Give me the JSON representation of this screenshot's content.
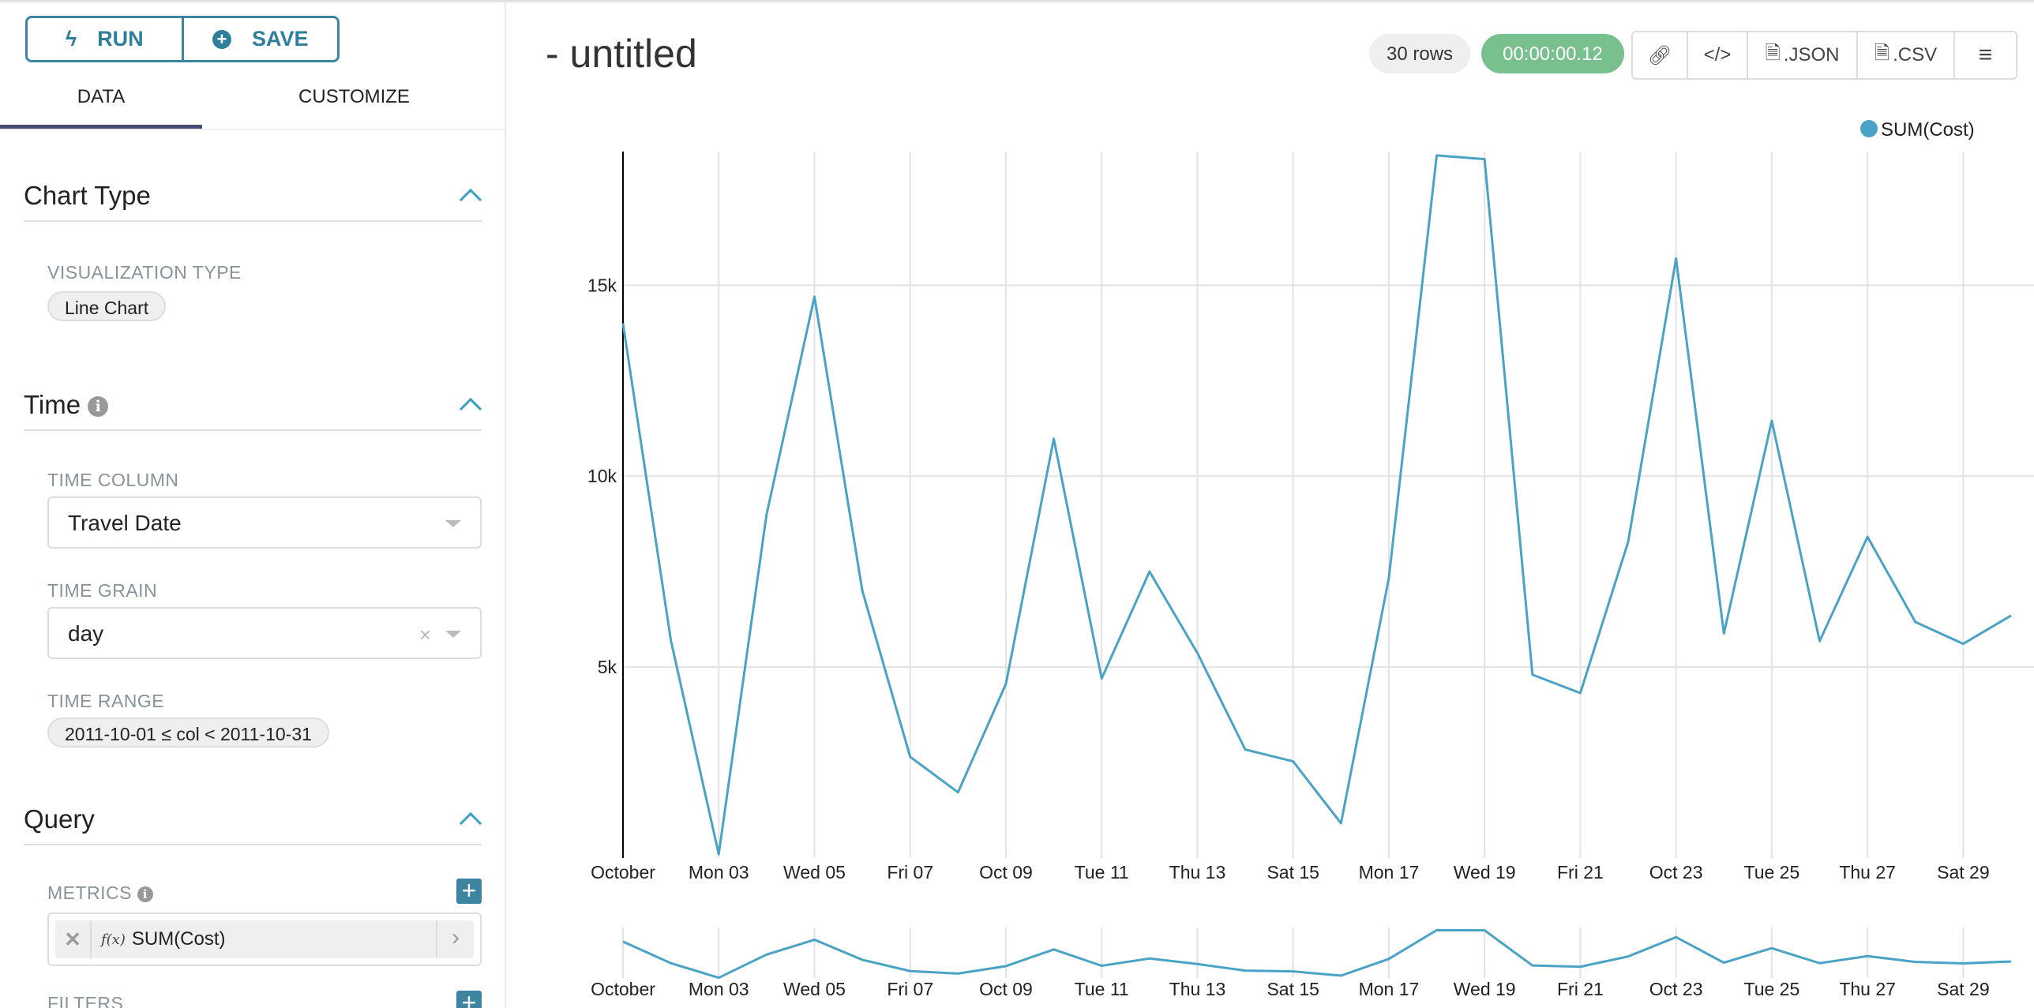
{
  "sidebar": {
    "run_label": "RUN",
    "save_label": "SAVE",
    "tabs": [
      "DATA",
      "CUSTOMIZE"
    ],
    "chart_type": {
      "title": "Chart Type",
      "viz_label": "VISUALIZATION TYPE",
      "viz_value": "Line Chart"
    },
    "time": {
      "title": "Time",
      "column_label": "TIME COLUMN",
      "column_value": "Travel Date",
      "grain_label": "TIME GRAIN",
      "grain_value": "day",
      "range_label": "TIME RANGE",
      "range_value": "2011-10-01 ≤ col < 2011-10-31"
    },
    "query": {
      "title": "Query",
      "metrics_label": "METRICS",
      "metric_value": "SUM(Cost)",
      "fx": "f(x)",
      "filters_label": "FILTERS"
    }
  },
  "header": {
    "title": "- untitled",
    "rows": "30 rows",
    "duration": "00:00:00.12",
    "json_label": ".JSON",
    "csv_label": ".CSV"
  },
  "colors": {
    "accent": "#3d86a2",
    "line": "#4aa3c6",
    "success": "#79c08f",
    "tab_indicator": "#484c74"
  },
  "chart_data": {
    "type": "line",
    "legend": "top-right",
    "grid": true,
    "x": [
      "2011-10-01",
      "2011-10-02",
      "2011-10-03",
      "2011-10-04",
      "2011-10-05",
      "2011-10-06",
      "2011-10-07",
      "2011-10-08",
      "2011-10-09",
      "2011-10-10",
      "2011-10-11",
      "2011-10-12",
      "2011-10-13",
      "2011-10-14",
      "2011-10-15",
      "2011-10-16",
      "2011-10-17",
      "2011-10-18",
      "2011-10-19",
      "2011-10-20",
      "2011-10-21",
      "2011-10-22",
      "2011-10-23",
      "2011-10-24",
      "2011-10-25",
      "2011-10-26",
      "2011-10-27",
      "2011-10-28",
      "2011-10-29",
      "2011-10-30"
    ],
    "series": [
      {
        "name": "SUM(Cost)",
        "values": [
          14000,
          5700,
          100,
          9000,
          14700,
          7000,
          2650,
          1720,
          4560,
          10980,
          4700,
          7500,
          5370,
          2840,
          2530,
          910,
          7330,
          18400,
          18300,
          4800,
          4320,
          8280,
          15700,
          5880,
          11450,
          5680,
          8410,
          6180,
          5610,
          6350
        ]
      }
    ],
    "ylim": [
      0,
      18500
    ],
    "yticks": [
      {
        "v": 5000,
        "label": "5k"
      },
      {
        "v": 10000,
        "label": "10k"
      },
      {
        "v": 15000,
        "label": "15k"
      }
    ],
    "xticks": [
      "October",
      "Mon 03",
      "Wed 05",
      "Fri 07",
      "Oct 09",
      "Tue 11",
      "Thu 13",
      "Sat 15",
      "Mon 17",
      "Wed 19",
      "Fri 21",
      "Oct 23",
      "Tue 25",
      "Thu 27",
      "Sat 29"
    ]
  }
}
